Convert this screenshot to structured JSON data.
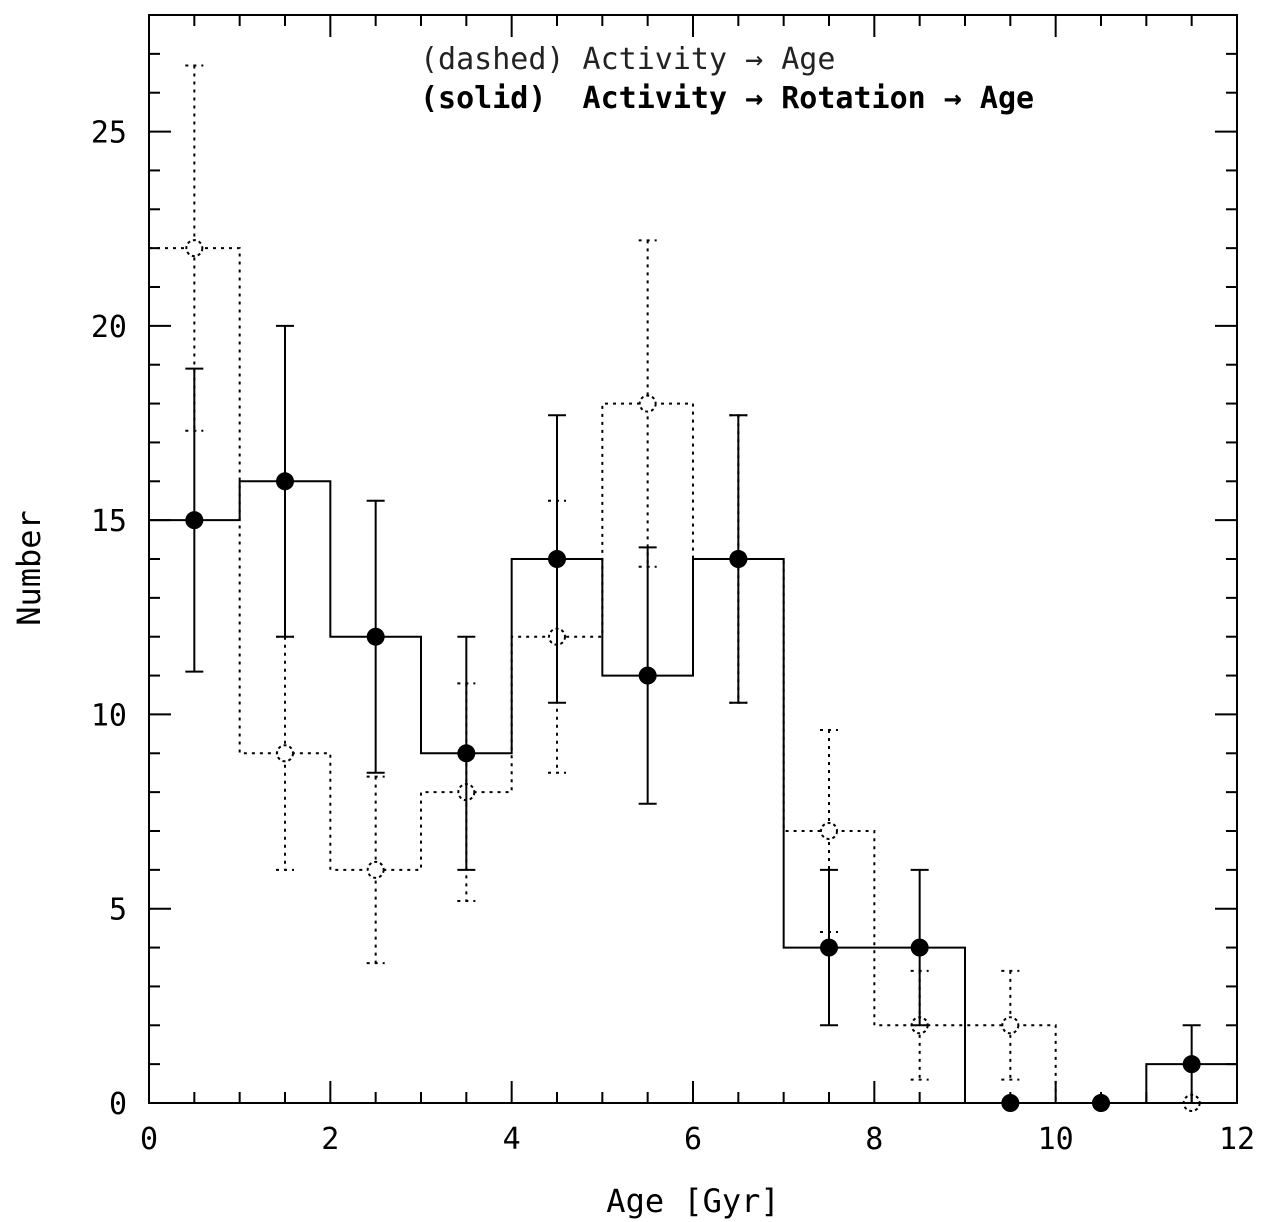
{
  "chart_data": {
    "type": "histogram",
    "xlabel": "Age [Gyr]",
    "ylabel": "Number",
    "xlim": [
      0,
      12
    ],
    "ylim": [
      0,
      28
    ],
    "x_ticks": [
      0,
      2,
      4,
      6,
      8,
      10,
      12
    ],
    "y_ticks": [
      0,
      5,
      10,
      15,
      20,
      25
    ],
    "x_tick_labels": [
      "0",
      "2",
      "4",
      "6",
      "8",
      "10",
      "12"
    ],
    "y_tick_labels": [
      "0",
      "5",
      "10",
      "15",
      "20",
      "25"
    ],
    "bin_edges": [
      0,
      1,
      2,
      3,
      4,
      5,
      6,
      7,
      8,
      9,
      10,
      11,
      12
    ],
    "bin_centers": [
      0.5,
      1.5,
      2.5,
      3.5,
      4.5,
      5.5,
      6.5,
      7.5,
      8.5,
      9.5,
      10.5,
      11.5
    ],
    "legend": {
      "dashed": "(dashed) Activity → Age",
      "solid": "(solid)  Activity → Rotation → Age"
    },
    "series": [
      {
        "style": "dashed",
        "values": [
          22,
          9,
          6,
          8,
          12,
          18,
          14,
          7,
          2,
          2,
          0,
          0
        ],
        "errors": [
          4.7,
          3.0,
          2.4,
          2.8,
          3.5,
          4.2,
          3.7,
          2.6,
          1.4,
          1.4,
          0,
          0
        ]
      },
      {
        "style": "solid",
        "values": [
          15,
          16,
          12,
          9,
          14,
          11,
          14,
          4,
          4,
          0,
          0,
          1
        ],
        "errors": [
          3.9,
          4.0,
          3.5,
          3.0,
          3.7,
          3.3,
          3.7,
          2.0,
          2.0,
          0,
          0,
          1.0
        ]
      }
    ]
  }
}
